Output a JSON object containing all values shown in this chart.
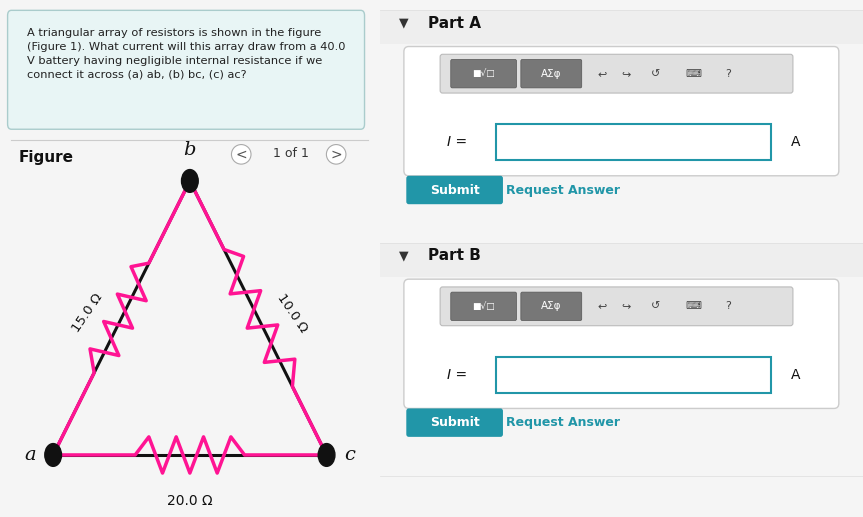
{
  "bg_left": "#f0f8f8",
  "bg_right": "#f5f5f5",
  "text_color": "#222222",
  "question_text": "A triangular array of resistors is shown in the figure\n(Figure 1). What current will this array draw from a 40.0\nV battery having negligible internal resistance if we\nconnect it across (a) ab, (b) bc, (c) ac?",
  "figure_label": "Figure",
  "figure_nav": "1 of 1",
  "part_a_label": "Part A",
  "part_b_label": "Part B",
  "submit_color": "#2196a8",
  "submit_text": "Submit",
  "request_text": "Request Answer",
  "request_color": "#2196a8",
  "I_label": "I =",
  "A_label": "A",
  "node_a": "a",
  "node_b": "b",
  "node_c": "c",
  "resistor_ab": "15.0 Ω",
  "resistor_bc": "10.0 Ω",
  "resistor_ac": "20.0 Ω",
  "resistor_color": "#ff1493",
  "wire_color": "#111111",
  "node_color": "#111111",
  "line_color": "#cccccc",
  "toolbar_bg": "#e8e8e8",
  "toolbar_btn_color": "#666666",
  "input_border": "#2196a8",
  "panel_bg": "#ffffff",
  "panel_border": "#cccccc"
}
